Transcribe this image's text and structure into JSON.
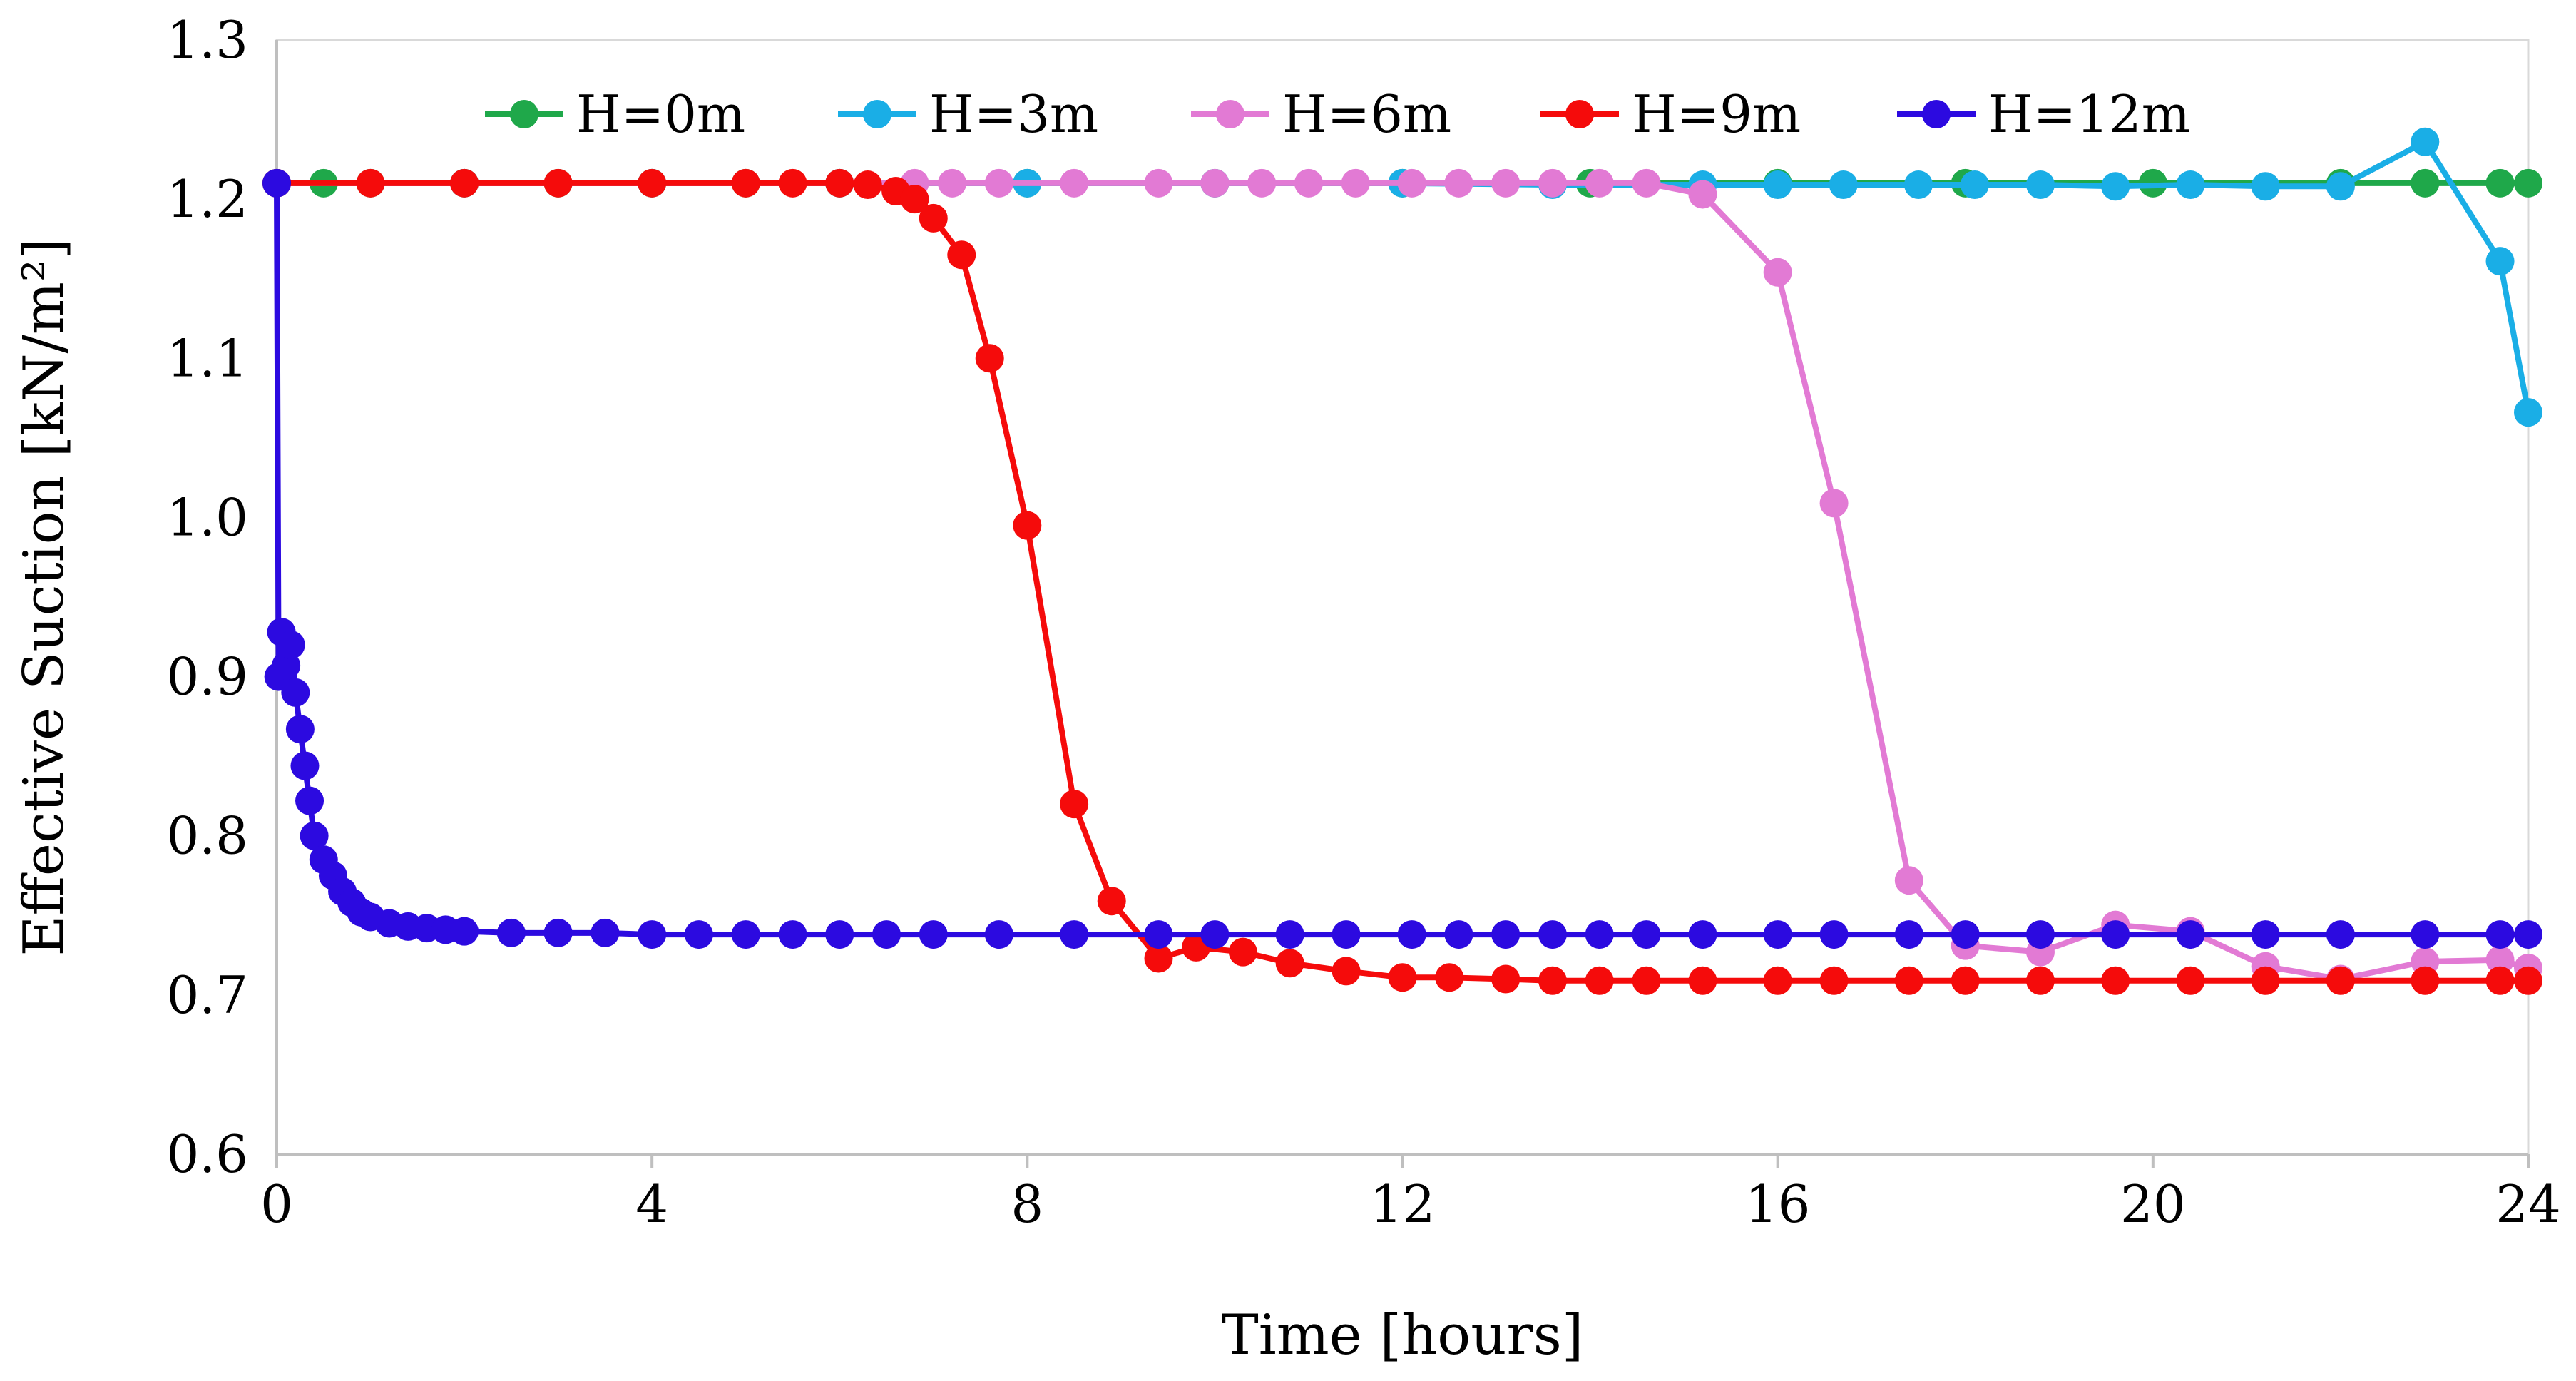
{
  "chart_data": {
    "type": "line",
    "title": "",
    "xlabel": "Time [hours]",
    "ylabel": "Effective Suction [kN/m²]",
    "xlim": [
      0,
      24
    ],
    "ylim": [
      0.6,
      1.3
    ],
    "xticks": [
      "0",
      "4",
      "8",
      "12",
      "16",
      "20",
      "24"
    ],
    "yticks": [
      "0.6",
      "0.7",
      "0.8",
      "0.9",
      "1.0",
      "1.1",
      "1.2",
      "1.3"
    ],
    "grid": false,
    "legend_position": "top",
    "series": [
      {
        "name": "H=0m",
        "color": "#1fa84a",
        "x": [
          0,
          0.5,
          1,
          2,
          3,
          4,
          5,
          6,
          8,
          10,
          12,
          14,
          16,
          18,
          20,
          22,
          22.9,
          23.7,
          24
        ],
        "y": [
          1.21,
          1.21,
          1.21,
          1.21,
          1.21,
          1.21,
          1.21,
          1.21,
          1.21,
          1.21,
          1.21,
          1.21,
          1.21,
          1.21,
          1.21,
          1.21,
          1.21,
          1.21,
          1.21
        ]
      },
      {
        "name": "H=3m",
        "color": "#1aaee6",
        "x": [
          0,
          2,
          4,
          6,
          8,
          10,
          12,
          13.6,
          15.2,
          16,
          16.7,
          17.5,
          18.1,
          18.8,
          19.6,
          20.4,
          21.2,
          22.0,
          22.9,
          23.7,
          24
        ],
        "y": [
          1.21,
          1.21,
          1.21,
          1.21,
          1.21,
          1.21,
          1.21,
          1.209,
          1.209,
          1.209,
          1.209,
          1.209,
          1.209,
          1.209,
          1.208,
          1.209,
          1.208,
          1.208,
          1.236,
          1.161,
          1.066
        ]
      },
      {
        "name": "H=6m",
        "color": "#e27ad4",
        "x": [
          0,
          6.8,
          7.2,
          7.7,
          8.5,
          9.4,
          10.0,
          10.5,
          11.0,
          11.5,
          12.1,
          12.6,
          13.1,
          13.6,
          14.1,
          14.6,
          15.2,
          16.0,
          16.6,
          17.4,
          18.0,
          18.8,
          19.6,
          20.4,
          21.2,
          22.0,
          22.9,
          23.7,
          24
        ],
        "y": [
          1.21,
          1.21,
          1.21,
          1.21,
          1.21,
          1.21,
          1.21,
          1.21,
          1.21,
          1.21,
          1.21,
          1.21,
          1.21,
          1.21,
          1.21,
          1.21,
          1.203,
          1.154,
          1.009,
          0.772,
          0.731,
          0.727,
          0.744,
          0.74,
          0.718,
          0.71,
          0.721,
          0.722,
          0.717
        ]
      },
      {
        "name": "H=9m",
        "color": "#f50b0b",
        "x": [
          0,
          1,
          2,
          3,
          4,
          5,
          5.5,
          6.0,
          6.3,
          6.6,
          6.8,
          7.0,
          7.3,
          7.6,
          8.0,
          8.5,
          8.9,
          9.4,
          9.8,
          10.3,
          10.8,
          11.4,
          12.0,
          12.5,
          13.1,
          13.6,
          14.1,
          14.6,
          15.2,
          16.0,
          16.6,
          17.4,
          18.0,
          18.8,
          19.6,
          20.4,
          21.2,
          22.0,
          22.9,
          23.7,
          24
        ],
        "y": [
          1.21,
          1.21,
          1.21,
          1.21,
          1.21,
          1.21,
          1.21,
          1.21,
          1.209,
          1.205,
          1.2,
          1.188,
          1.165,
          1.1,
          0.995,
          0.82,
          0.759,
          0.723,
          0.73,
          0.727,
          0.72,
          0.715,
          0.711,
          0.711,
          0.71,
          0.709,
          0.709,
          0.709,
          0.709,
          0.709,
          0.709,
          0.709,
          0.709,
          0.709,
          0.709,
          0.709,
          0.709,
          0.709,
          0.709,
          0.709,
          0.709
        ]
      },
      {
        "name": "H=12m",
        "color": "#2c0ae0",
        "x": [
          0,
          0.02,
          0.05,
          0.1,
          0.15,
          0.2,
          0.25,
          0.3,
          0.35,
          0.4,
          0.5,
          0.6,
          0.7,
          0.8,
          0.9,
          1.0,
          1.2,
          1.4,
          1.6,
          1.8,
          2.0,
          2.5,
          3.0,
          3.5,
          4.0,
          4.5,
          5.0,
          5.5,
          6.0,
          6.5,
          7.0,
          7.7,
          8.5,
          9.4,
          10.0,
          10.8,
          11.4,
          12.1,
          12.6,
          13.1,
          13.6,
          14.1,
          14.6,
          15.2,
          16.0,
          16.6,
          17.4,
          18.0,
          18.8,
          19.6,
          20.4,
          21.2,
          22.0,
          22.9,
          23.7,
          24
        ],
        "y": [
          1.21,
          0.9,
          0.928,
          0.907,
          0.92,
          0.89,
          0.867,
          0.844,
          0.822,
          0.8,
          0.785,
          0.775,
          0.765,
          0.758,
          0.752,
          0.749,
          0.745,
          0.743,
          0.742,
          0.741,
          0.74,
          0.739,
          0.739,
          0.739,
          0.738,
          0.738,
          0.738,
          0.738,
          0.738,
          0.738,
          0.738,
          0.738,
          0.738,
          0.738,
          0.738,
          0.738,
          0.738,
          0.738,
          0.738,
          0.738,
          0.738,
          0.738,
          0.738,
          0.738,
          0.738,
          0.738,
          0.738,
          0.738,
          0.738,
          0.738,
          0.738,
          0.738,
          0.738,
          0.738,
          0.738,
          0.738
        ]
      }
    ]
  }
}
